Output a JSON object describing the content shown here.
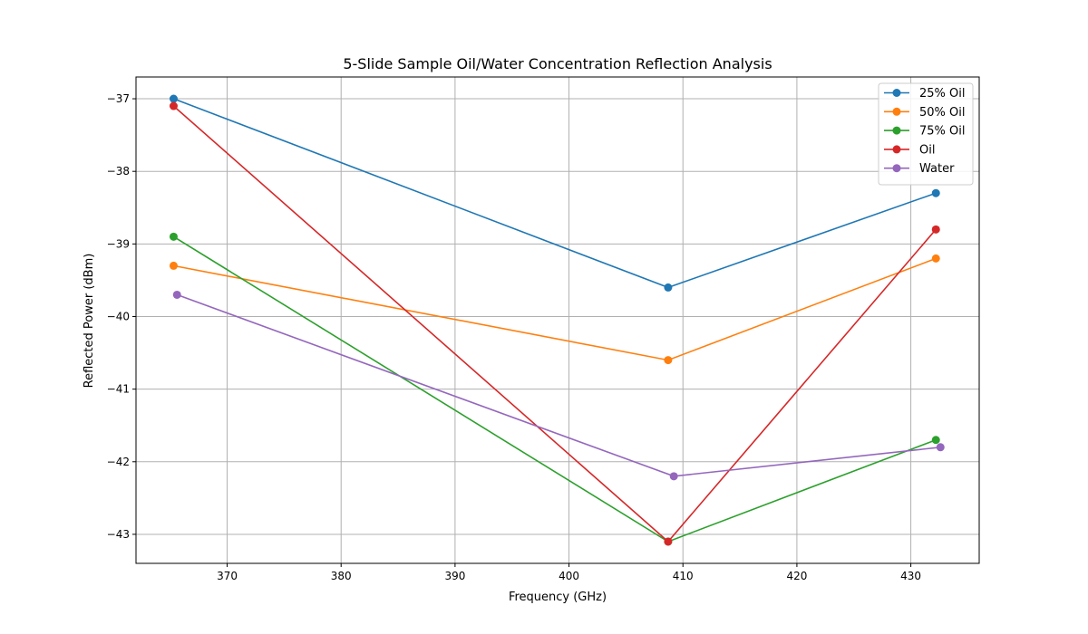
{
  "chart_data": {
    "type": "line",
    "title": "5-Slide Sample Oil/Water Concentration Reflection Analysis",
    "xlabel": "Frequency (GHz)",
    "ylabel": "Reflected Power (dBm)",
    "xlim": [
      362,
      436
    ],
    "ylim": [
      -43.4,
      -36.7
    ],
    "xticks": [
      370,
      380,
      390,
      400,
      410,
      420,
      430
    ],
    "yticks": [
      -37,
      -38,
      -39,
      -40,
      -41,
      -42,
      -43
    ],
    "grid": true,
    "legend_position": "top-right",
    "series": [
      {
        "name": "25% Oil",
        "color": "#1f77b4",
        "x": [
          365.3,
          408.7,
          432.2
        ],
        "y": [
          -37.0,
          -39.6,
          -38.3
        ]
      },
      {
        "name": "50% Oil",
        "color": "#ff7f0e",
        "x": [
          365.3,
          408.7,
          432.2
        ],
        "y": [
          -39.3,
          -40.6,
          -39.2
        ]
      },
      {
        "name": "75% Oil",
        "color": "#2ca02c",
        "x": [
          365.3,
          408.7,
          432.2
        ],
        "y": [
          -38.9,
          -43.1,
          -41.7
        ]
      },
      {
        "name": "Oil",
        "color": "#d62728",
        "x": [
          365.3,
          408.7,
          432.2
        ],
        "y": [
          -37.1,
          -43.1,
          -38.8
        ]
      },
      {
        "name": "Water",
        "color": "#9467bd",
        "x": [
          365.6,
          409.2,
          432.6
        ],
        "y": [
          -39.7,
          -42.2,
          -41.8
        ]
      }
    ]
  }
}
